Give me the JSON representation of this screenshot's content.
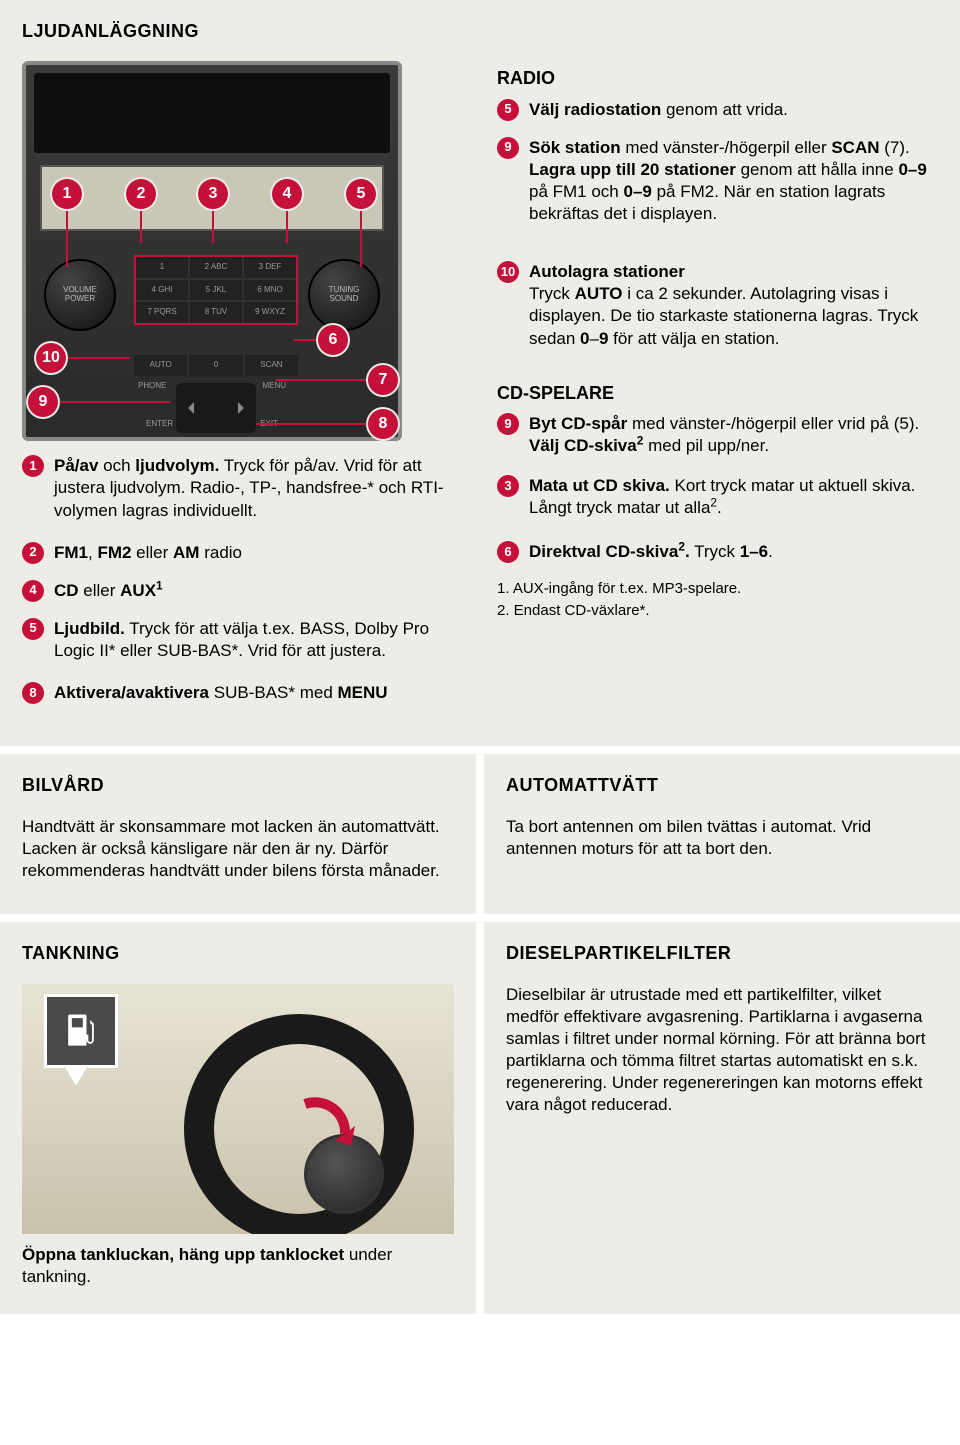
{
  "colors": {
    "badge": "#c5113a",
    "panel_bg": "#edece6",
    "text": "#000000"
  },
  "audio": {
    "title": "LJUDANLÄGGNING",
    "radio_heading": "RADIO",
    "cd_heading": "CD-SPELARE",
    "console": {
      "knob_left_top": "VOLUME",
      "knob_left_bottom": "POWER",
      "knob_right_top": "TUNING",
      "knob_right_bottom": "SOUND",
      "keypad_labels": [
        "1",
        "2 ABC",
        "3 DEF",
        "4 GHI",
        "5 JKL",
        "6 MNO",
        "7 PQRS",
        "8 TUV",
        "9 WXYZ"
      ],
      "row2": [
        "AUTO",
        "0",
        "SCAN"
      ],
      "row3_left": "PHONE",
      "row3_right": "MENU",
      "enter": "ENTER",
      "exit": "EXIT",
      "callouts": [
        1,
        2,
        3,
        4,
        5,
        6,
        7,
        8,
        9,
        10
      ]
    },
    "items_left": [
      {
        "n": 1,
        "html": "<b>På/av</b> och <b>ljudvolym.</b> Tryck för på/av. Vrid för att justera ljudvolym. Radio-, TP-, handsfree-* och RTI-volymen lagras individuellt."
      },
      {
        "n": 2,
        "html": "<b>FM1</b>, <b>FM2</b> eller <b>AM</b> radio"
      },
      {
        "n": 4,
        "html": "<b>CD</b> eller <b>AUX<sup>1</sup></b>"
      },
      {
        "n": 5,
        "html": "<b>Ljudbild.</b> Tryck för att välja t.ex. BASS, Dolby Pro Logic II* eller SUB-BAS*. Vrid för att justera."
      },
      {
        "n": 8,
        "html": "<b>Aktivera/avaktivera</b> SUB-BAS* med <b>MENU</b>"
      }
    ],
    "radio_items": [
      {
        "n": 5,
        "html": "<b>Välj radiostation</b> genom att vrida."
      },
      {
        "n": 9,
        "html": "<b>Sök station</b> med vänster-/högerpil eller <b>SCAN</b> (7). <b>Lagra upp till 20 stationer</b> genom att hålla inne <b>0–9</b> på FM1 och <b>0–9</b> på FM2. När en station lagrats bekräftas det i displayen."
      },
      {
        "n": 10,
        "html": "<b>Autolagra stationer</b><br>Tryck <b>AUTO</b> i ca 2 sekunder. Autolagring visas i displayen. De tio starkaste stationerna lagras. Tryck sedan <b>0</b>–<b>9</b> för att välja en station."
      }
    ],
    "cd_items": [
      {
        "n": 9,
        "html": "<b>Byt CD-spår</b> med vänster-/högerpil eller vrid på (5).<br><b>Välj CD-skiva<sup>2</sup></b> med pil upp/ner."
      },
      {
        "n": 3,
        "html": "<b>Mata ut CD skiva.</b> Kort tryck matar ut aktuell skiva. Långt tryck matar ut alla<sup>2</sup>."
      },
      {
        "n": 6,
        "html": "<b>Direktval CD-skiva<sup>2</sup>.</b> Tryck <b>1–6</b>."
      }
    ],
    "footnotes": [
      "1. AUX-ingång för t.ex. MP3-spelare.",
      "2. Endast CD-växlare*."
    ]
  },
  "carcare": {
    "title": "BILVÅRD",
    "body": "Handtvätt är skonsammare mot lacken än automattvätt. Lacken är också känsligare när den är ny. Därför rekommenderas handtvätt under bilens första månader."
  },
  "autowash": {
    "title": "AUTOMATTVÄTT",
    "body": "Ta bort antennen om bilen tvättas i automat. Vrid antennen moturs för att ta bort den."
  },
  "tank": {
    "title": "TANKNING",
    "caption_html": "<b>Öppna tankluckan, häng upp tanklocket</b> under tankning."
  },
  "diesel": {
    "title": "DIESELPARTIKELFILTER",
    "body": "Dieselbilar är utrustade med ett partikelfilter, vilket medför effektivare avgasrening. Partiklarna i avgaserna samlas i filtret under normal körning. För att bränna bort partiklarna och tömma filtret startas automatiskt en s.k. regenerering. Under regenereringen kan motorns effekt vara något reducerad."
  }
}
